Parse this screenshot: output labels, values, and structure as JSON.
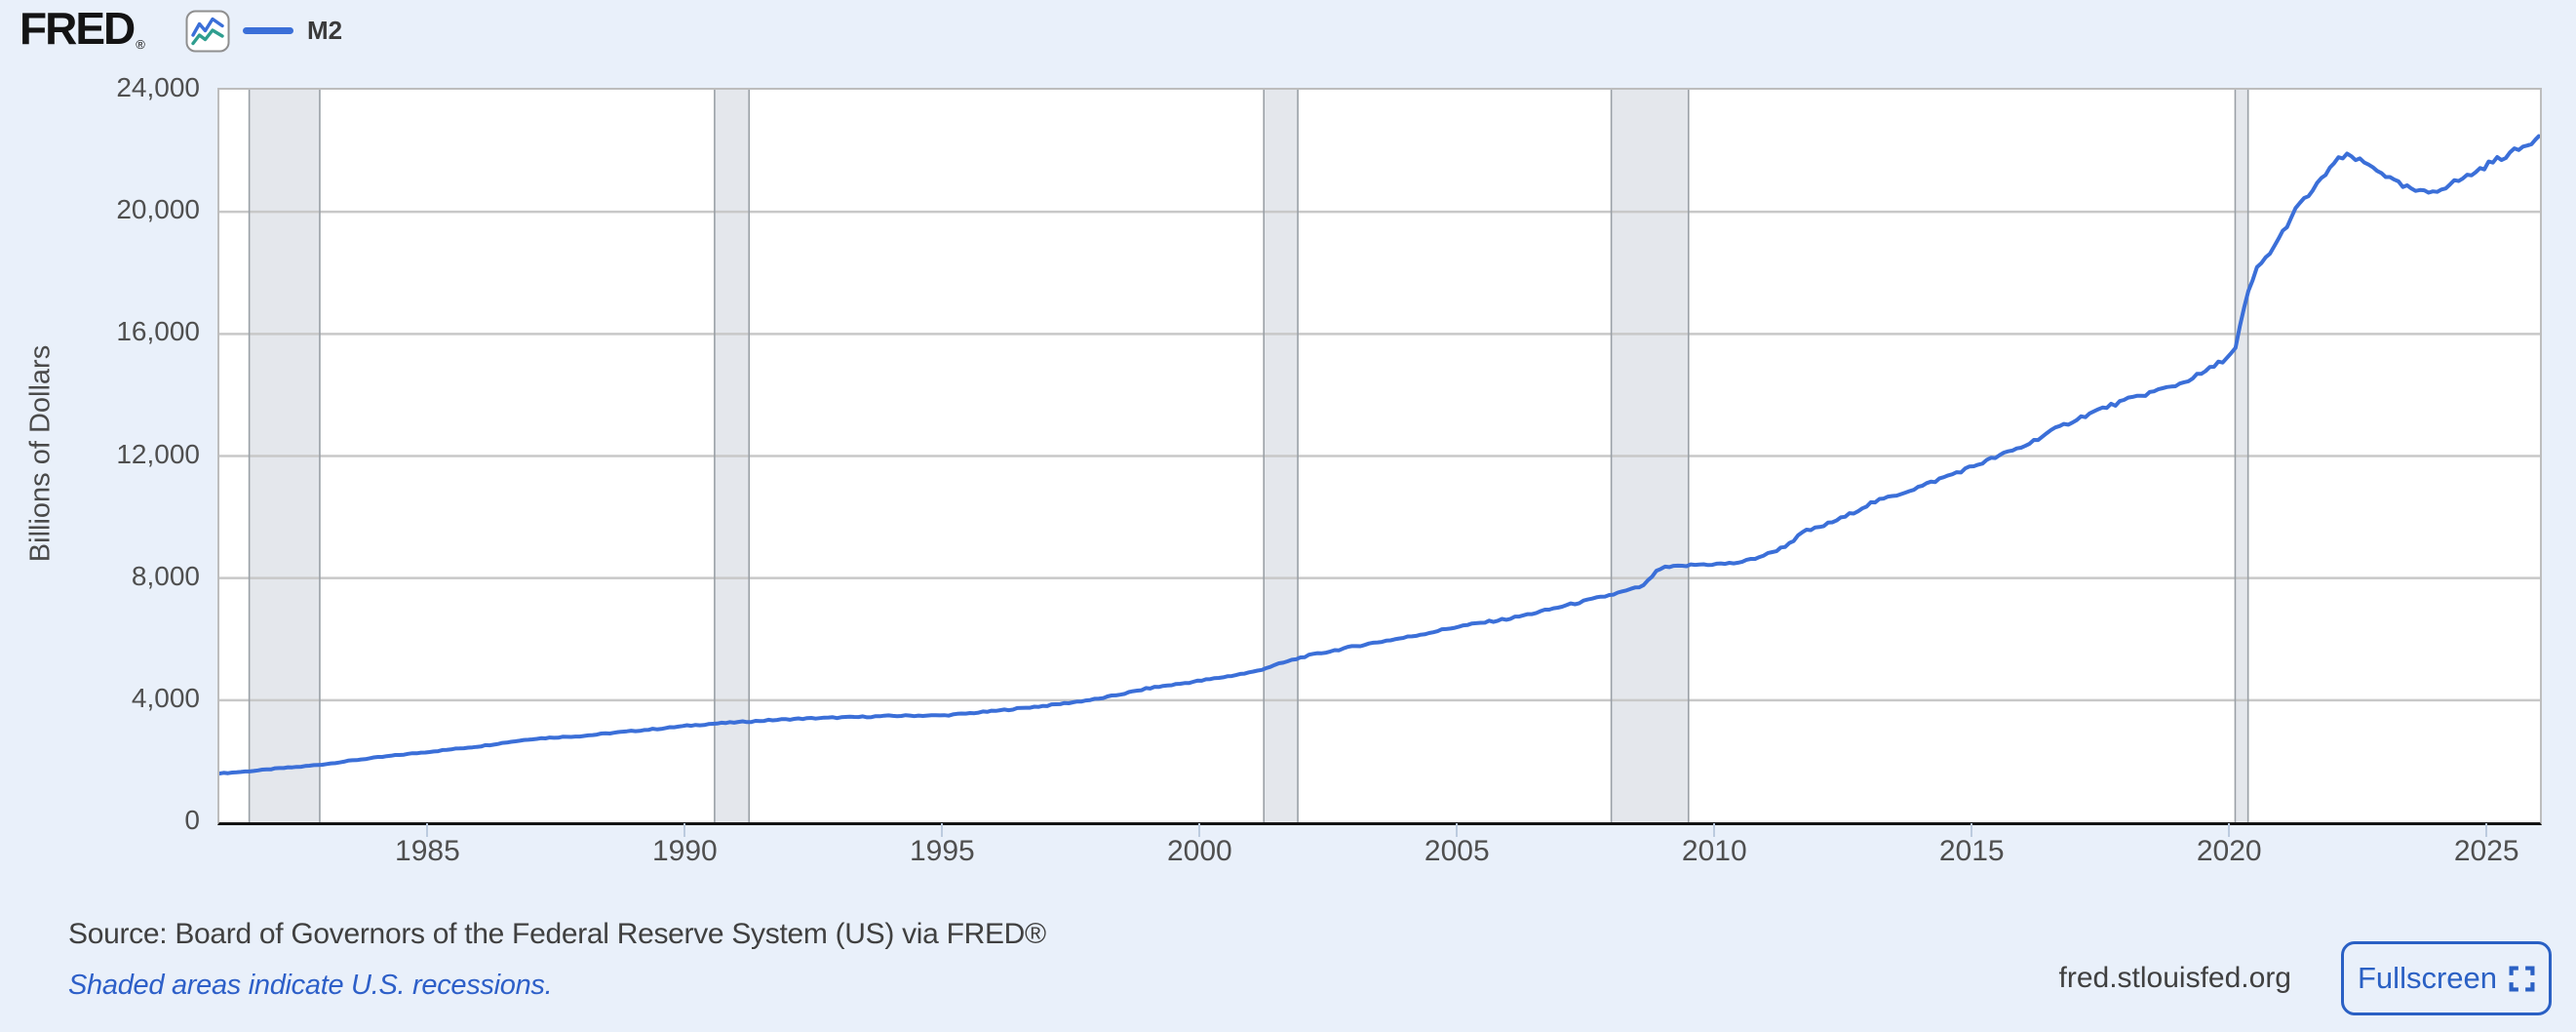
{
  "brand": {
    "logo_text": "FRED",
    "registered_mark": "®",
    "icon_name": "fred-sparkline-icon",
    "icon_line1_color": "#3b6fd8",
    "icon_line2_color": "#2f9e8f"
  },
  "legend": {
    "series_label": "M2",
    "series_color": "#3b6fd8"
  },
  "y_axis": {
    "title": "Billions of Dollars",
    "tick_labels": [
      "24,000",
      "20,000",
      "16,000",
      "12,000",
      "8,000",
      "4,000",
      "0"
    ]
  },
  "x_axis": {
    "tick_labels": [
      "1985",
      "1990",
      "1995",
      "2000",
      "2005",
      "2010",
      "2015",
      "2020",
      "2025"
    ]
  },
  "footer": {
    "source_text": "Source: Board of Governors of the Federal Reserve System (US) via FRED®",
    "recession_note": "Shaded areas indicate U.S. recessions.",
    "site_url": "fred.stlouisfed.org",
    "fullscreen_label": "Fullscreen"
  },
  "chart_data": {
    "type": "line",
    "title": "M2",
    "ylabel": "Billions of Dollars",
    "ylim": [
      0,
      24000
    ],
    "xlim": [
      1980.92,
      2026.0
    ],
    "y_ticks": [
      24000,
      20000,
      16000,
      12000,
      8000,
      4000,
      0
    ],
    "x_ticks": [
      1985,
      1990,
      1995,
      2000,
      2005,
      2010,
      2015,
      2020,
      2025
    ],
    "grid": "horizontal",
    "legend_position": "top-left",
    "plot_bg": "#ffffff",
    "gridline_color": "#c8c8c8",
    "recession_color": "#e4e7ec",
    "recession_edge_color": "#9aa0a6",
    "recessions": [
      [
        1981.5,
        1982.87
      ],
      [
        1990.54,
        1991.21
      ],
      [
        2001.21,
        2001.87
      ],
      [
        2007.96,
        2009.46
      ],
      [
        2020.08,
        2020.33
      ]
    ],
    "series": [
      {
        "name": "M2",
        "color": "#3b6fd8",
        "units": "Billions of Dollars",
        "points": [
          [
            1980.92,
            1598
          ],
          [
            1981.25,
            1640
          ],
          [
            1981.5,
            1672
          ],
          [
            1981.75,
            1712
          ],
          [
            1982,
            1756
          ],
          [
            1982.5,
            1822
          ],
          [
            1983,
            1911
          ],
          [
            1983.5,
            2025
          ],
          [
            1984,
            2127
          ],
          [
            1984.5,
            2222
          ],
          [
            1985,
            2311
          ],
          [
            1985.5,
            2404
          ],
          [
            1986,
            2497
          ],
          [
            1986.5,
            2619
          ],
          [
            1987,
            2734
          ],
          [
            1987.5,
            2788
          ],
          [
            1988,
            2832
          ],
          [
            1988.5,
            2920
          ],
          [
            1989,
            2997
          ],
          [
            1989.5,
            3072
          ],
          [
            1990,
            3161
          ],
          [
            1990.5,
            3228
          ],
          [
            1991,
            3279
          ],
          [
            1991.5,
            3332
          ],
          [
            1992,
            3379
          ],
          [
            1992.5,
            3410
          ],
          [
            1993,
            3434
          ],
          [
            1993.5,
            3458
          ],
          [
            1994,
            3487
          ],
          [
            1994.5,
            3496
          ],
          [
            1995,
            3502
          ],
          [
            1995.5,
            3572
          ],
          [
            1996,
            3649
          ],
          [
            1996.5,
            3738
          ],
          [
            1997,
            3824
          ],
          [
            1997.5,
            3932
          ],
          [
            1998,
            4046
          ],
          [
            1998.5,
            4218
          ],
          [
            1999,
            4401
          ],
          [
            1999.5,
            4518
          ],
          [
            2000,
            4643
          ],
          [
            2000.5,
            4778
          ],
          [
            2001,
            4925
          ],
          [
            2001.5,
            5184
          ],
          [
            2002,
            5433
          ],
          [
            2002.5,
            5604
          ],
          [
            2003,
            5772
          ],
          [
            2003.5,
            5924
          ],
          [
            2004,
            6066
          ],
          [
            2004.5,
            6238
          ],
          [
            2005,
            6417
          ],
          [
            2005.5,
            6551
          ],
          [
            2006,
            6680
          ],
          [
            2006.5,
            6868
          ],
          [
            2007,
            7070
          ],
          [
            2007.5,
            7268
          ],
          [
            2008,
            7471
          ],
          [
            2008.4,
            7650
          ],
          [
            2008.6,
            7760
          ],
          [
            2008.75,
            8060
          ],
          [
            2008.9,
            8310
          ],
          [
            2009.1,
            8360
          ],
          [
            2009.35,
            8390
          ],
          [
            2009.6,
            8440
          ],
          [
            2010,
            8460
          ],
          [
            2010.3,
            8480
          ],
          [
            2010.6,
            8570
          ],
          [
            2011,
            8790
          ],
          [
            2011.3,
            9010
          ],
          [
            2011.5,
            9240
          ],
          [
            2011.7,
            9520
          ],
          [
            2012,
            9659
          ],
          [
            2012.5,
            10010
          ],
          [
            2013,
            10450
          ],
          [
            2013.5,
            10730
          ],
          [
            2014,
            11020
          ],
          [
            2014.5,
            11350
          ],
          [
            2015,
            11670
          ],
          [
            2015.5,
            12010
          ],
          [
            2016,
            12340
          ],
          [
            2016.5,
            12810
          ],
          [
            2017,
            13210
          ],
          [
            2017.5,
            13560
          ],
          [
            2018,
            13850
          ],
          [
            2018.5,
            14110
          ],
          [
            2019,
            14360
          ],
          [
            2019.5,
            14760
          ],
          [
            2019.9,
            15200
          ],
          [
            2020.08,
            15460
          ],
          [
            2020.2,
            16450
          ],
          [
            2020.35,
            17450
          ],
          [
            2020.5,
            18120
          ],
          [
            2020.7,
            18540
          ],
          [
            2020.9,
            19020
          ],
          [
            2021.1,
            19620
          ],
          [
            2021.3,
            20180
          ],
          [
            2021.5,
            20540
          ],
          [
            2021.7,
            20920
          ],
          [
            2021.9,
            21420
          ],
          [
            2022.1,
            21720
          ],
          [
            2022.3,
            21840
          ],
          [
            2022.5,
            21660
          ],
          [
            2022.7,
            21510
          ],
          [
            2022.9,
            21340
          ],
          [
            2023.1,
            21060
          ],
          [
            2023.3,
            20860
          ],
          [
            2023.5,
            20740
          ],
          [
            2023.7,
            20620
          ],
          [
            2023.9,
            20660
          ],
          [
            2024.1,
            20790
          ],
          [
            2024.3,
            20940
          ],
          [
            2024.5,
            21090
          ],
          [
            2024.7,
            21260
          ],
          [
            2024.9,
            21460
          ],
          [
            2025.1,
            21660
          ],
          [
            2025.3,
            21820
          ],
          [
            2025.5,
            21980
          ],
          [
            2025.7,
            22140
          ],
          [
            2025.98,
            22480
          ]
        ]
      }
    ]
  }
}
